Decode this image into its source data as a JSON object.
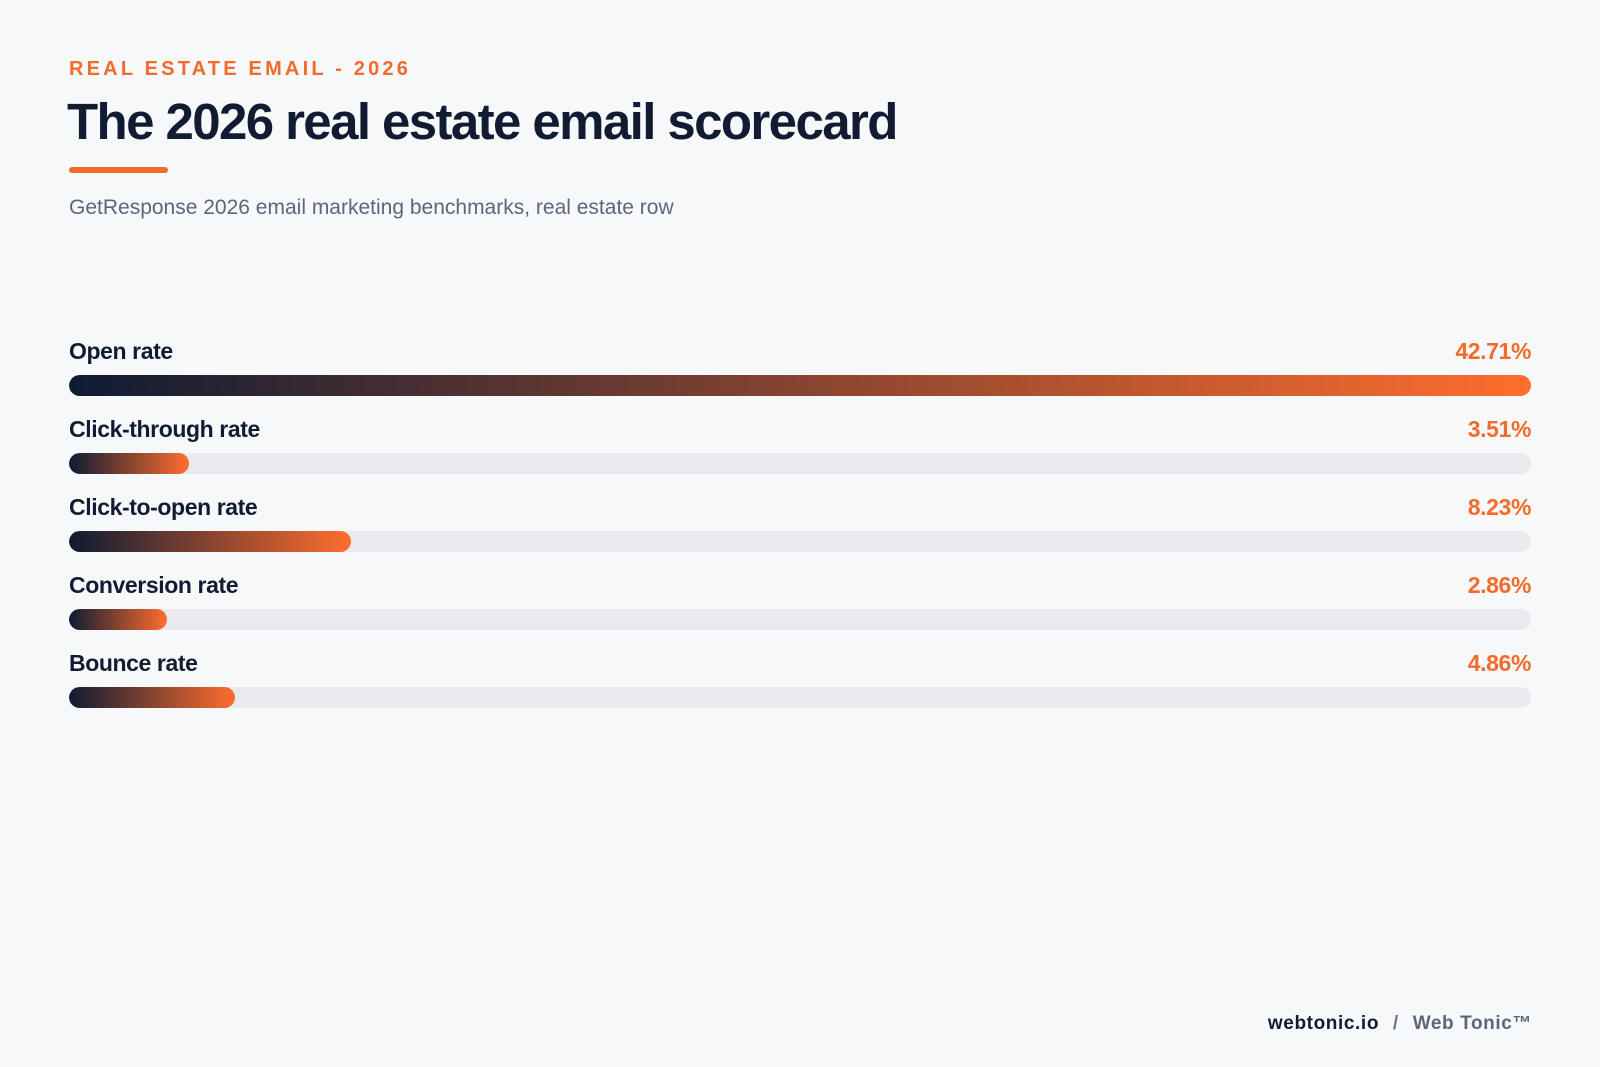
{
  "header": {
    "eyebrow": "REAL ESTATE EMAIL - 2026",
    "subtitle": "GetResponse 2026 email marketing benchmarks, real estate row"
  },
  "chart_data": {
    "type": "bar",
    "orientation": "horizontal",
    "title": "The 2026 real estate email scorecard",
    "categories": [
      "Open rate",
      "Click-through rate",
      "Click-to-open rate",
      "Conversion rate",
      "Bounce rate"
    ],
    "values": [
      42.71,
      3.51,
      8.23,
      2.86,
      4.86
    ],
    "value_labels": [
      "42.71%",
      "3.51%",
      "8.23%",
      "2.86%",
      "4.86%"
    ],
    "unit": "%",
    "xlim": [
      0,
      42.71
    ],
    "grid": false,
    "legend": "none",
    "colors": {
      "gradient_start": "#0f1b33",
      "gradient_end": "#ff6d2d",
      "track": "#e8eaee",
      "accent": "#f26b2a"
    }
  },
  "footer": {
    "domain": "webtonic.io",
    "separator": "/",
    "brand": "Web Tonic™"
  }
}
